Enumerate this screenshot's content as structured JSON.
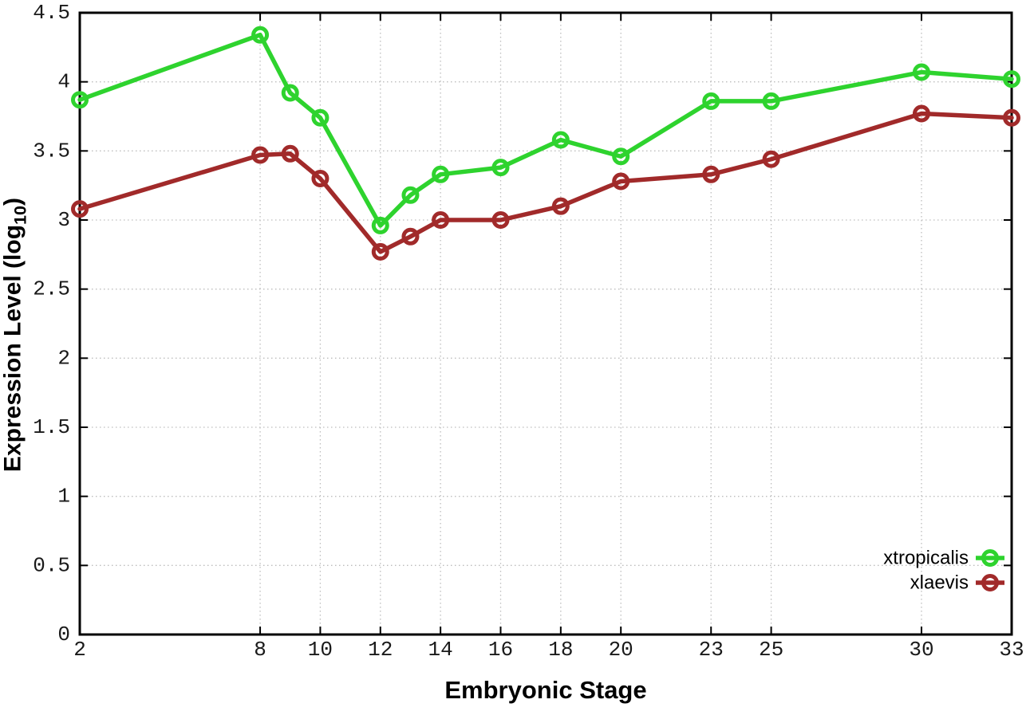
{
  "chart_data": {
    "type": "line",
    "title": "",
    "xlabel": "Embryonic Stage",
    "ylabel": {
      "main": "Expression Level (log",
      "sub": "10",
      "end": ")"
    },
    "x": [
      2,
      8,
      9,
      10,
      12,
      13,
      14,
      16,
      18,
      20,
      23,
      25,
      30,
      33
    ],
    "series": [
      {
        "name": "xtropicalis",
        "color": "#2ed32e",
        "values": [
          3.87,
          4.34,
          3.92,
          3.74,
          2.96,
          3.18,
          3.33,
          3.38,
          3.58,
          3.46,
          3.86,
          3.86,
          4.07,
          4.02
        ]
      },
      {
        "name": "xlaevis",
        "color": "#a12a2a",
        "values": [
          3.08,
          3.47,
          3.48,
          3.3,
          2.77,
          2.88,
          3.0,
          3.0,
          3.1,
          3.28,
          3.33,
          3.44,
          3.77,
          3.74
        ]
      }
    ],
    "xlim": [
      2,
      33
    ],
    "ylim": [
      0,
      4.5
    ],
    "xticks": {
      "values": [
        2,
        8,
        10,
        12,
        14,
        16,
        18,
        20,
        23,
        25,
        30,
        33
      ],
      "labels": [
        "2",
        "8",
        "10",
        "12",
        "14",
        "16",
        "18",
        "20",
        "23",
        "25",
        "30",
        "33"
      ]
    },
    "yticks": {
      "values": [
        0,
        0.5,
        1,
        1.5,
        2,
        2.5,
        3,
        3.5,
        4,
        4.5
      ],
      "labels": [
        "0",
        "0.5",
        "1",
        "1.5",
        "2",
        "2.5",
        "3",
        "3.5",
        "4",
        "4.5"
      ]
    },
    "grid": true,
    "legend_position": "bottom-right",
    "colors": {
      "axis": "#000000",
      "grid": "#bdbdbd",
      "tick_label": "#1a1a1a",
      "legend_text": "#000000",
      "background": "#ffffff"
    }
  }
}
